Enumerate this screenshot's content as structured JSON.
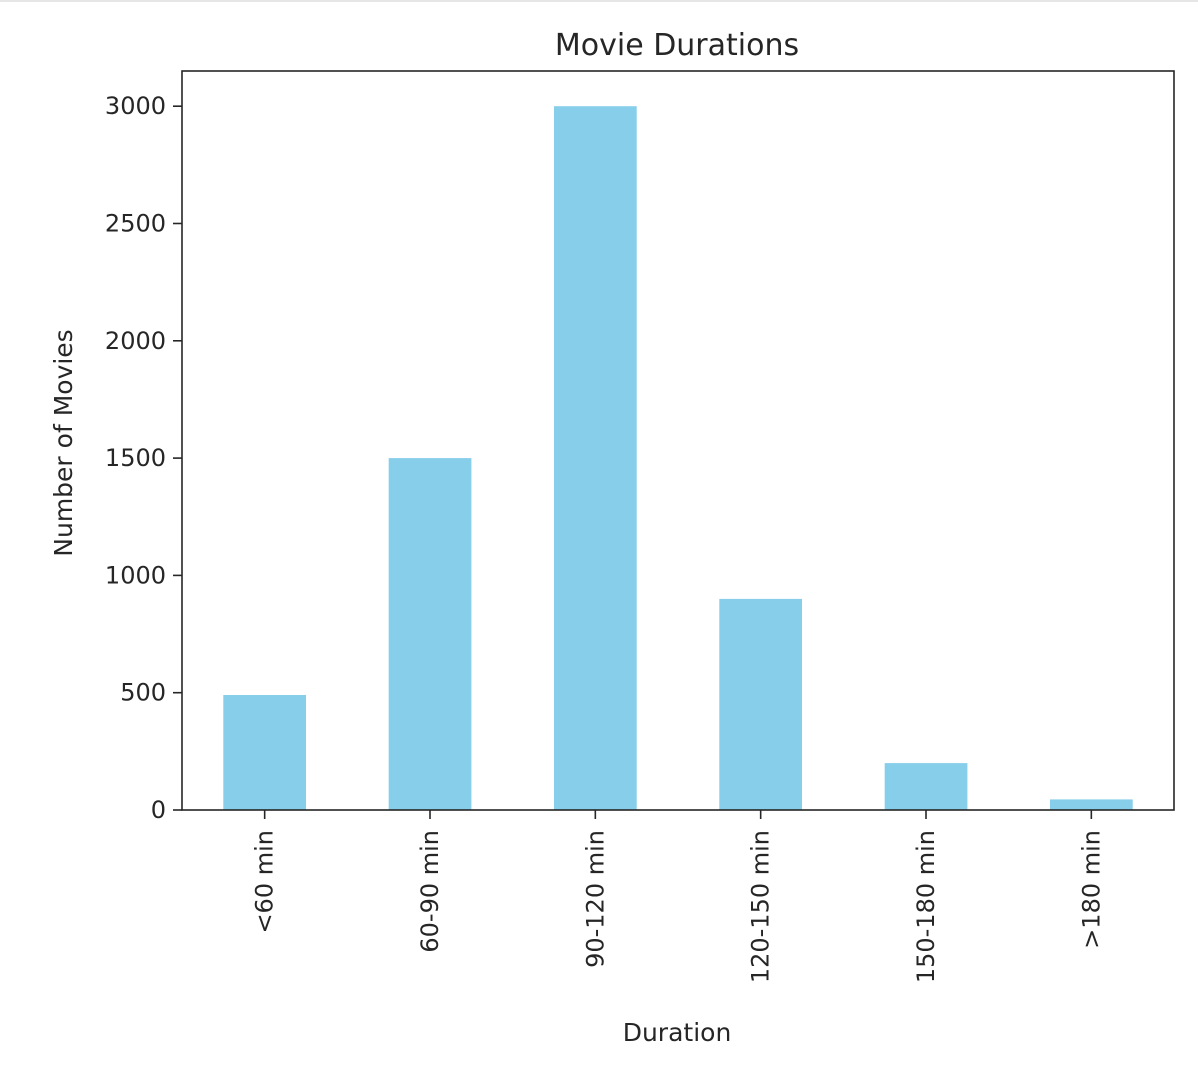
{
  "chart_data": {
    "type": "bar",
    "title": "Movie Durations",
    "xlabel": "Duration",
    "ylabel": "Number of Movies",
    "categories": [
      "<60 min",
      "60-90 min",
      "90-120 min",
      "120-150 min",
      "150-180 min",
      ">180 min"
    ],
    "values": [
      490,
      1500,
      3000,
      900,
      200,
      45
    ],
    "ylim": [
      0,
      3150
    ],
    "yticks": [
      0,
      500,
      1000,
      1500,
      2000,
      2500,
      3000
    ],
    "bar_color": "#87ceeb",
    "grid": false,
    "legend": "none"
  }
}
